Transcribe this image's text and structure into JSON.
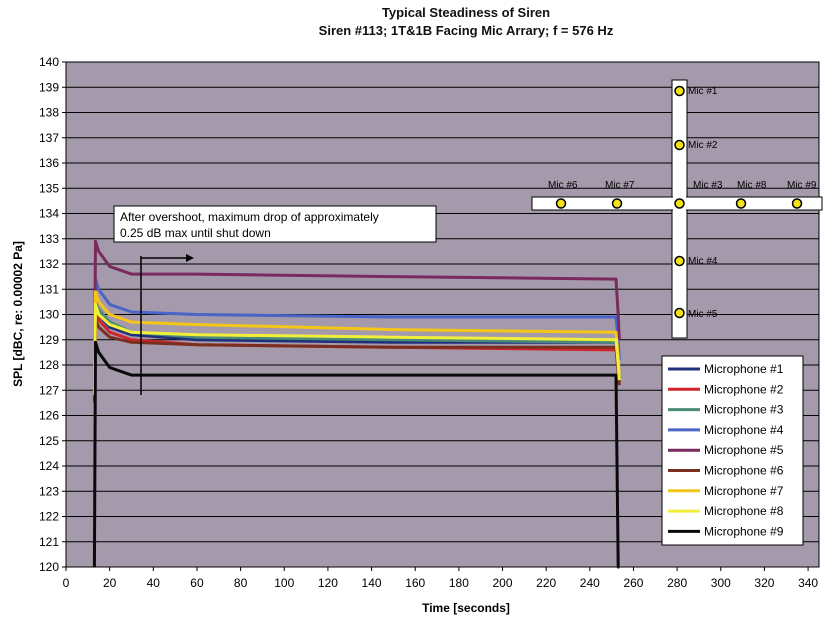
{
  "chart_data": {
    "type": "line",
    "title": "Typical Steadiness of Siren",
    "subtitle": "Siren #113; 1T&1B Facing Mic Arrary; f = 576 Hz",
    "xlabel": "Time [seconds]",
    "ylabel": "SPL [dBC, re: 0.00002 Pa]",
    "xlim": [
      0,
      345
    ],
    "ylim": [
      120,
      140
    ],
    "xticks": [
      0,
      20,
      40,
      60,
      80,
      100,
      120,
      140,
      160,
      180,
      200,
      220,
      240,
      260,
      280,
      300,
      320,
      340
    ],
    "yticks": [
      120,
      121,
      122,
      123,
      124,
      125,
      126,
      127,
      128,
      129,
      130,
      131,
      132,
      133,
      134,
      135,
      136,
      137,
      138,
      139,
      140
    ],
    "grid": true,
    "legend_position": "bottom-right",
    "colors": {
      "plot_background": "#a59aab",
      "grid": "#000000"
    },
    "series": [
      {
        "name": "Microphone #1",
        "color": "#1f2f7a",
        "x": [
          13,
          13.5,
          15,
          20,
          30,
          60,
          150,
          252,
          253,
          253.5
        ],
        "y": [
          126.8,
          130.2,
          130.0,
          129.5,
          129.2,
          129.0,
          128.9,
          128.9,
          128.0,
          127.5
        ]
      },
      {
        "name": "Microphone #2",
        "color": "#d0242a",
        "x": [
          13,
          13.5,
          15,
          20,
          30,
          60,
          150,
          252,
          253,
          253.5
        ],
        "y": [
          126.5,
          130.1,
          129.8,
          129.3,
          129.0,
          128.8,
          128.7,
          128.6,
          127.8,
          127.3
        ]
      },
      {
        "name": "Microphone #3",
        "color": "#4a8a78",
        "x": [
          13,
          13.5,
          15,
          20,
          30,
          60,
          150,
          252,
          253,
          253.5
        ],
        "y": [
          126.9,
          130.5,
          130.2,
          129.7,
          129.3,
          129.1,
          129.0,
          128.9,
          128.2,
          127.6
        ]
      },
      {
        "name": "Microphone #4",
        "color": "#4a64c8",
        "x": [
          13,
          13.5,
          15,
          20,
          30,
          60,
          150,
          252,
          253,
          253.5
        ],
        "y": [
          127.2,
          131.4,
          131.0,
          130.4,
          130.1,
          130.0,
          129.9,
          129.9,
          129.0,
          128.2
        ]
      },
      {
        "name": "Microphone #5",
        "color": "#7a2a5e",
        "x": [
          13,
          13.5,
          15,
          20,
          30,
          60,
          150,
          252,
          253,
          253.5
        ],
        "y": [
          127.5,
          132.9,
          132.5,
          131.9,
          131.6,
          131.6,
          131.5,
          131.4,
          130.0,
          129.0
        ]
      },
      {
        "name": "Microphone #6",
        "color": "#7a2e20",
        "x": [
          13,
          13.5,
          15,
          20,
          30,
          60,
          150,
          252,
          253,
          253.5
        ],
        "y": [
          126.6,
          129.8,
          129.5,
          129.1,
          128.9,
          128.8,
          128.7,
          128.7,
          127.7,
          127.2
        ]
      },
      {
        "name": "Microphone #7",
        "color": "#f5c518",
        "x": [
          13,
          13.5,
          15,
          20,
          30,
          60,
          150,
          252,
          253,
          253.5
        ],
        "y": [
          127.0,
          130.9,
          130.5,
          130.0,
          129.7,
          129.6,
          129.4,
          129.3,
          128.3,
          127.6
        ]
      },
      {
        "name": "Microphone #8",
        "color": "#f2ef3a",
        "x": [
          13,
          13.5,
          15,
          20,
          30,
          60,
          150,
          252,
          253,
          253.5
        ],
        "y": [
          126.8,
          130.4,
          130.0,
          129.6,
          129.3,
          129.2,
          129.1,
          129.0,
          128.0,
          127.4
        ]
      },
      {
        "name": "Microphone #9",
        "color": "#0a0a0a",
        "x": [
          13,
          13.5,
          15,
          20,
          30,
          60,
          150,
          252,
          253,
          253.5
        ],
        "y": [
          120.0,
          128.9,
          128.5,
          127.9,
          127.6,
          127.6,
          127.6,
          127.6,
          120.0,
          120.0
        ]
      }
    ],
    "annotations": [
      {
        "text_lines": [
          "After overshoot, maximum drop of approximately",
          "0.25 dB max until shut down"
        ]
      }
    ],
    "mic_layout": {
      "labels": [
        "Mic #1",
        "Mic #2",
        "Mic #3",
        "Mic #4",
        "Mic #5",
        "Mic #6",
        "Mic #7",
        "Mic #8",
        "Mic #9"
      ]
    }
  }
}
